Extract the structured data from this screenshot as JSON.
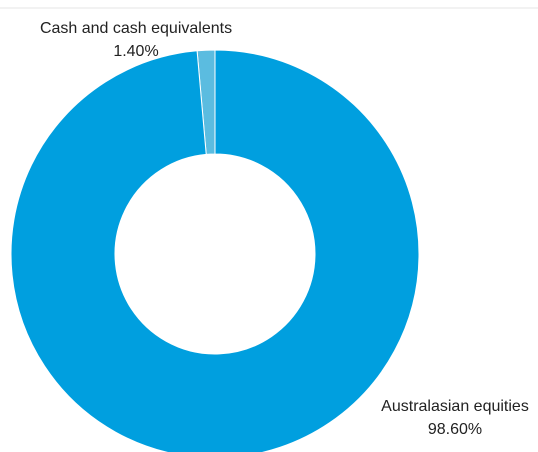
{
  "chart_data": {
    "type": "pie",
    "variant": "donut",
    "title": "",
    "legend": "none",
    "slices": [
      {
        "label": "Cash and cash equivalents",
        "value": 1.4,
        "value_label": "1.40%",
        "color": "#5bbce0"
      },
      {
        "label": "Australasian equities",
        "value": 98.6,
        "value_label": "98.60%",
        "color": "#009fdf"
      }
    ]
  }
}
